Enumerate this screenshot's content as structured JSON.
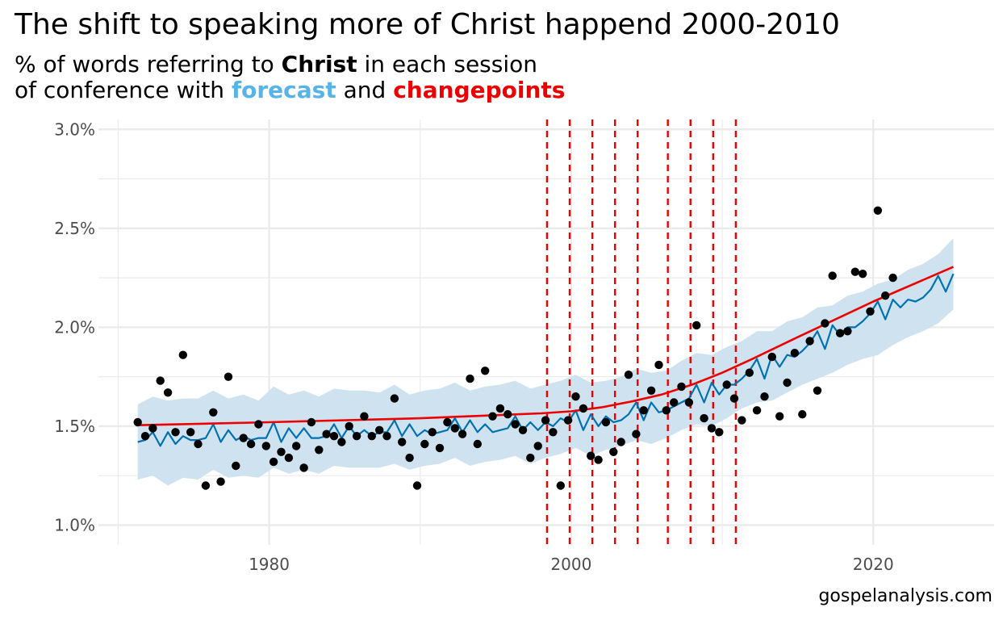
{
  "title": "The shift to speaking more of Christ happend 2000-2010",
  "subtitle": {
    "line1_pre": "% of words referring to ",
    "line1_bold": "Christ",
    "line1_post": " in each session",
    "line2_pre": "of conference with ",
    "line2_forecast": "forecast",
    "line2_mid": " and ",
    "line2_changepoints": "changepoints"
  },
  "caption": "gospelanalysis.com",
  "colors": {
    "points": "#000000",
    "forecast_line": "#0072b2",
    "forecast_band": "#cfe2ef",
    "trend_line": "#ee0000",
    "changepoints": "#ee0000",
    "forecast_label": "#56b4e9",
    "changepoints_label": "#ee0000",
    "grid": "#ebebeb"
  },
  "chart_data": {
    "type": "scatter",
    "title": "The shift to speaking more of Christ happend 2000-2010",
    "xlabel": "",
    "ylabel": "",
    "xlim": [
      1968.7,
      2028.0
    ],
    "ylim": [
      0.9,
      3.05
    ],
    "x_ticks": [
      1980,
      2000,
      2020
    ],
    "y_ticks": [
      1.0,
      1.5,
      2.0,
      2.5,
      3.0
    ],
    "y_tick_labels": [
      "1.0%",
      "1.5%",
      "2.0%",
      "2.5%",
      "3.0%"
    ],
    "grid": true,
    "series": [
      {
        "kind": "points",
        "x": [
          1971.3,
          1971.8,
          1972.3,
          1972.8,
          1973.3,
          1973.8,
          1974.3,
          1974.8,
          1975.3,
          1975.8,
          1976.3,
          1976.8,
          1977.3,
          1977.8,
          1978.3,
          1978.8,
          1979.3,
          1979.8,
          1980.3,
          1980.8,
          1981.3,
          1981.8,
          1982.3,
          1982.8,
          1983.3,
          1983.8,
          1984.3,
          1984.8,
          1985.3,
          1985.8,
          1986.3,
          1986.8,
          1987.3,
          1987.8,
          1988.3,
          1988.8,
          1989.3,
          1989.8,
          1990.3,
          1990.8,
          1991.3,
          1991.8,
          1992.3,
          1992.8,
          1993.3,
          1993.8,
          1994.3,
          1994.8,
          1995.3,
          1995.8,
          1996.3,
          1996.8,
          1997.3,
          1997.8,
          1998.3,
          1998.8,
          1999.3,
          1999.8,
          2000.3,
          2000.8,
          2001.3,
          2001.8,
          2002.3,
          2002.8,
          2003.3,
          2003.8,
          2004.3,
          2004.8,
          2005.3,
          2005.8,
          2006.3,
          2006.8,
          2007.3,
          2007.8,
          2008.3,
          2008.8,
          2009.3,
          2009.8,
          2010.3,
          2010.8,
          2011.3,
          2011.8,
          2012.3,
          2012.8,
          2013.3,
          2013.8,
          2014.3,
          2014.8,
          2015.3,
          2015.8,
          2016.3,
          2016.8,
          2017.3,
          2017.8,
          2018.3,
          2018.8,
          2019.3,
          2019.8,
          2020.3,
          2020.8,
          2021.3
        ],
        "y": [
          1.52,
          1.45,
          1.49,
          1.73,
          1.67,
          1.47,
          1.86,
          1.47,
          1.41,
          1.2,
          1.57,
          1.22,
          1.75,
          1.3,
          1.44,
          1.41,
          1.51,
          1.4,
          1.32,
          1.37,
          1.34,
          1.4,
          1.29,
          1.52,
          1.38,
          1.46,
          1.45,
          1.42,
          1.5,
          1.45,
          1.55,
          1.45,
          1.48,
          1.45,
          1.64,
          1.42,
          1.34,
          1.2,
          1.41,
          1.47,
          1.39,
          1.52,
          1.49,
          1.46,
          1.74,
          1.41,
          1.78,
          1.55,
          1.59,
          1.56,
          1.51,
          1.48,
          1.34,
          1.4,
          1.53,
          1.47,
          1.2,
          1.53,
          1.65,
          1.59,
          1.35,
          1.33,
          1.52,
          1.37,
          1.42,
          1.76,
          1.46,
          1.58,
          1.68,
          1.81,
          1.58,
          1.62,
          1.7,
          1.62,
          2.01,
          1.54,
          1.49,
          1.47,
          1.71,
          1.64,
          1.53,
          1.77,
          1.58,
          1.65,
          1.85,
          1.55,
          1.72,
          1.87,
          1.56,
          1.93,
          1.68,
          2.02,
          2.26,
          1.97,
          1.98,
          2.28,
          2.27,
          2.08,
          2.59,
          2.16,
          2.25
        ]
      },
      {
        "kind": "forecast_line",
        "x": [
          1971.3,
          1971.8,
          1972.3,
          1972.8,
          1973.3,
          1973.8,
          1974.3,
          1974.8,
          1975.3,
          1975.8,
          1976.3,
          1976.8,
          1977.3,
          1977.8,
          1978.3,
          1978.8,
          1979.3,
          1979.8,
          1980.3,
          1980.8,
          1981.3,
          1981.8,
          1982.3,
          1982.8,
          1983.3,
          1983.8,
          1984.3,
          1984.8,
          1985.3,
          1985.8,
          1986.3,
          1986.8,
          1987.3,
          1987.8,
          1988.3,
          1988.8,
          1989.3,
          1989.8,
          1990.3,
          1990.8,
          1991.3,
          1991.8,
          1992.3,
          1992.8,
          1993.3,
          1993.8,
          1994.3,
          1994.8,
          1995.3,
          1995.8,
          1996.3,
          1996.8,
          1997.3,
          1997.8,
          1998.3,
          1998.8,
          1999.3,
          1999.8,
          2000.3,
          2000.8,
          2001.3,
          2001.8,
          2002.3,
          2002.8,
          2003.3,
          2003.8,
          2004.3,
          2004.8,
          2005.3,
          2005.8,
          2006.3,
          2006.8,
          2007.3,
          2007.8,
          2008.3,
          2008.8,
          2009.3,
          2009.8,
          2010.3,
          2010.8,
          2011.3,
          2011.8,
          2012.3,
          2012.8,
          2013.3,
          2013.8,
          2014.3,
          2014.8,
          2015.3,
          2015.8,
          2016.3,
          2016.8,
          2017.3,
          2017.8,
          2018.3,
          2018.8,
          2019.3,
          2019.8,
          2020.3,
          2020.8,
          2021.3,
          2021.8,
          2022.3,
          2022.8,
          2023.3,
          2023.8,
          2024.3,
          2024.8,
          2025.3
        ],
        "y": [
          1.42,
          1.43,
          1.47,
          1.4,
          1.47,
          1.41,
          1.45,
          1.43,
          1.43,
          1.44,
          1.51,
          1.42,
          1.48,
          1.43,
          1.45,
          1.43,
          1.44,
          1.44,
          1.52,
          1.42,
          1.49,
          1.44,
          1.49,
          1.44,
          1.44,
          1.45,
          1.51,
          1.44,
          1.5,
          1.45,
          1.48,
          1.45,
          1.47,
          1.47,
          1.53,
          1.45,
          1.51,
          1.45,
          1.48,
          1.46,
          1.47,
          1.48,
          1.54,
          1.47,
          1.53,
          1.47,
          1.51,
          1.47,
          1.48,
          1.49,
          1.55,
          1.48,
          1.52,
          1.48,
          1.52,
          1.5,
          1.54,
          1.52,
          1.58,
          1.48,
          1.56,
          1.5,
          1.55,
          1.52,
          1.53,
          1.56,
          1.62,
          1.53,
          1.62,
          1.57,
          1.58,
          1.6,
          1.62,
          1.64,
          1.71,
          1.62,
          1.72,
          1.66,
          1.71,
          1.71,
          1.74,
          1.78,
          1.84,
          1.74,
          1.86,
          1.8,
          1.86,
          1.85,
          1.88,
          1.92,
          1.98,
          1.89,
          2.01,
          1.96,
          2.0,
          2.0,
          2.03,
          2.07,
          2.13,
          2.04,
          2.14,
          2.1,
          2.14,
          2.13,
          2.15,
          2.19,
          2.26,
          2.18,
          2.27
        ]
      },
      {
        "kind": "forecast_band",
        "x": [
          1971.3,
          1972.3,
          1973.3,
          1974.3,
          1975.3,
          1976.3,
          1977.3,
          1978.3,
          1979.3,
          1980.3,
          1981.3,
          1982.3,
          1983.3,
          1984.3,
          1985.3,
          1986.3,
          1987.3,
          1988.3,
          1989.3,
          1990.3,
          1991.3,
          1992.3,
          1993.3,
          1994.3,
          1995.3,
          1996.3,
          1997.3,
          1998.3,
          1999.3,
          2000.3,
          2001.3,
          2002.3,
          2003.3,
          2004.3,
          2005.3,
          2006.3,
          2007.3,
          2008.3,
          2009.3,
          2010.3,
          2011.3,
          2012.3,
          2013.3,
          2014.3,
          2015.3,
          2016.3,
          2017.3,
          2018.3,
          2019.3,
          2020.3,
          2021.3,
          2022.3,
          2023.3,
          2024.3,
          2025.3
        ],
        "lower": [
          1.23,
          1.25,
          1.2,
          1.24,
          1.23,
          1.28,
          1.24,
          1.25,
          1.24,
          1.29,
          1.26,
          1.28,
          1.26,
          1.3,
          1.29,
          1.29,
          1.29,
          1.31,
          1.28,
          1.3,
          1.31,
          1.34,
          1.3,
          1.32,
          1.33,
          1.35,
          1.31,
          1.34,
          1.36,
          1.39,
          1.35,
          1.38,
          1.4,
          1.43,
          1.41,
          1.44,
          1.48,
          1.51,
          1.5,
          1.54,
          1.59,
          1.62,
          1.63,
          1.67,
          1.71,
          1.74,
          1.77,
          1.81,
          1.84,
          1.86,
          1.91,
          1.95,
          1.98,
          2.02,
          2.09
        ],
        "upper": [
          1.61,
          1.65,
          1.63,
          1.64,
          1.64,
          1.68,
          1.64,
          1.66,
          1.63,
          1.7,
          1.66,
          1.68,
          1.65,
          1.69,
          1.68,
          1.68,
          1.67,
          1.71,
          1.66,
          1.68,
          1.69,
          1.72,
          1.68,
          1.7,
          1.71,
          1.73,
          1.69,
          1.71,
          1.73,
          1.76,
          1.72,
          1.73,
          1.75,
          1.79,
          1.77,
          1.78,
          1.83,
          1.87,
          1.86,
          1.9,
          1.93,
          1.98,
          1.98,
          2.03,
          2.05,
          2.1,
          2.11,
          2.16,
          2.18,
          2.22,
          2.24,
          2.29,
          2.32,
          2.37,
          2.45
        ]
      },
      {
        "kind": "trend_line",
        "x": [
          1971.3,
          1980.0,
          1990.0,
          1998.0,
          2000.0,
          2002.0,
          2004.0,
          2006.0,
          2008.0,
          2010.0,
          2012.0,
          2015.0,
          2020.0,
          2025.3
        ],
        "y": [
          1.505,
          1.52,
          1.54,
          1.565,
          1.575,
          1.595,
          1.625,
          1.66,
          1.71,
          1.77,
          1.84,
          1.95,
          2.13,
          2.305
        ]
      }
    ],
    "changepoints": [
      1998.4,
      1999.9,
      2001.4,
      2002.9,
      2004.4,
      2006.4,
      2007.9,
      2009.4,
      2010.9
    ]
  }
}
